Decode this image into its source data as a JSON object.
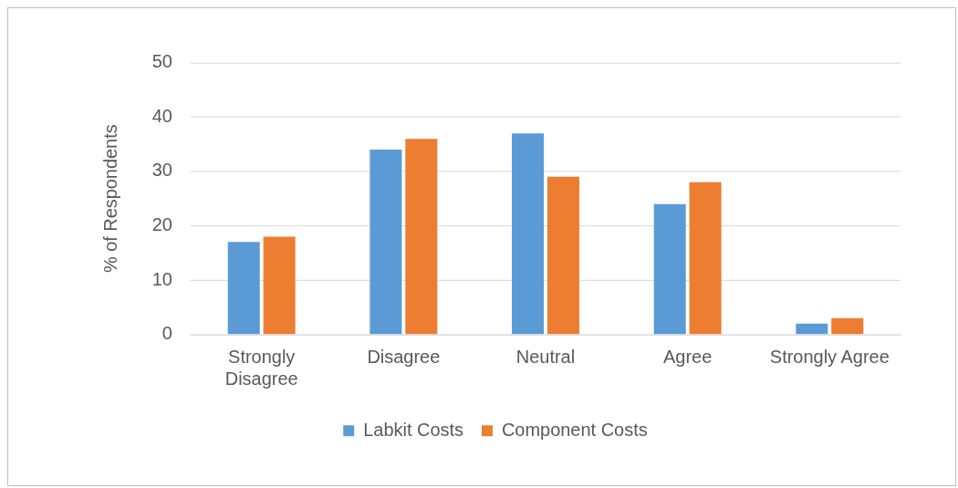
{
  "chart_data": {
    "type": "bar",
    "ylabel": "% of Respondents",
    "categories": [
      "Strongly Disagree",
      "Disagree",
      "Neutral",
      "Agree",
      "Strongly Agree"
    ],
    "series": [
      {
        "name": "Labkit Costs",
        "color": "#5b9bd5",
        "values": [
          17,
          34,
          37,
          24,
          2
        ]
      },
      {
        "name": "Component Costs",
        "color": "#ed7d31",
        "values": [
          18,
          36,
          29,
          28,
          3
        ]
      }
    ],
    "ylim": [
      0,
      50
    ],
    "yticks": [
      0,
      10,
      20,
      30,
      40,
      50
    ],
    "grid": "y",
    "legend": "bottom"
  }
}
